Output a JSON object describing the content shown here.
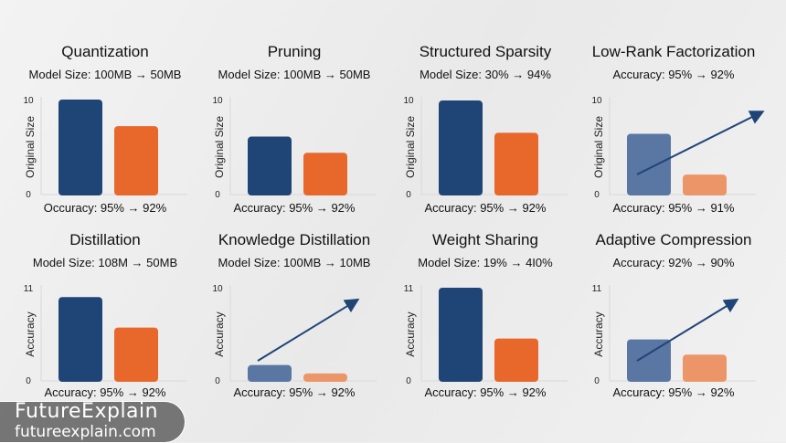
{
  "colors": {
    "blue": "#1f4577",
    "orange": "#e8682c",
    "blue_light": "#5a76a2",
    "orange_light": "#ec9569",
    "arrow": "#1f4577"
  },
  "watermark": {
    "brand": "FutureExplain",
    "url": "futureexplain.com"
  },
  "chart_data": [
    {
      "type": "bar",
      "title": "Quantization",
      "subtitle": "Model Size: 100MB → 50MB",
      "caption": "Occuracy: 95% → 92%",
      "ylabel": "Original Size",
      "ylim": [
        0,
        10
      ],
      "ticks": [
        "0",
        "10"
      ],
      "values": [
        10,
        7.2
      ],
      "trend_arrow": false,
      "faded": false
    },
    {
      "type": "bar",
      "title": "Pruning",
      "subtitle": "Model Size: 100MB → 50MB",
      "caption": "Accuracy: 95% → 92%",
      "ylabel": "Original Size",
      "ylim": [
        0,
        10
      ],
      "ticks": [
        "0",
        "10"
      ],
      "values": [
        6.1,
        4.4
      ],
      "trend_arrow": false,
      "faded": false
    },
    {
      "type": "bar",
      "title": "Structured Sparsity",
      "subtitle": "Model Size: 30% → 94%",
      "caption": "Accuracy: 95% → 92%",
      "ylabel": "Original Size",
      "ylim": [
        0,
        10
      ],
      "ticks": [
        "0",
        "10"
      ],
      "values": [
        9.9,
        6.5
      ],
      "trend_arrow": false,
      "faded": false
    },
    {
      "type": "bar",
      "title": "Low-Rank Factorization",
      "subtitle": "Accuracy: 95% → 92%",
      "caption": "Accuracy: 95% → 91%",
      "ylabel": "Original Size",
      "ylim": [
        0,
        10
      ],
      "ticks": [
        "0",
        "10"
      ],
      "values": [
        6.4,
        2.1
      ],
      "trend_arrow": true,
      "faded": true
    },
    {
      "type": "bar",
      "title": "Distillation",
      "subtitle": "Model Size: 108M → 50MB",
      "caption": "Accuracy: 95% → 92%",
      "ylabel": "Accuracy",
      "ylim": [
        0,
        11
      ],
      "ticks": [
        "0",
        "11"
      ],
      "values": [
        9.9,
        6.3
      ],
      "trend_arrow": false,
      "faded": false
    },
    {
      "type": "bar",
      "title": "Knowledge Distillation",
      "subtitle": "Model Size: 100MB → 10MB",
      "caption": "Accuracy: 95% → 92%",
      "ylabel": "Accuracy",
      "ylim": [
        0,
        10
      ],
      "ticks": [
        "0",
        "10"
      ],
      "values": [
        1.7,
        0.8
      ],
      "trend_arrow": true,
      "faded": true
    },
    {
      "type": "bar",
      "title": "Weight Sharing",
      "subtitle": "Model Size: 19% → 4I0%",
      "caption": "Accuracy: 95% → 92%",
      "ylabel": "Accuracy",
      "ylim": [
        0,
        11
      ],
      "ticks": [
        "0",
        "11"
      ],
      "values": [
        11,
        5.0
      ],
      "trend_arrow": false,
      "faded": false
    },
    {
      "type": "bar",
      "title": "Adaptive Compression",
      "subtitle": "Accuracy: 92% → 90%",
      "caption": "Accuracy: 95% → 92%",
      "ylabel": "Accuracy",
      "ylim": [
        0,
        11
      ],
      "ticks": [
        "0",
        "11"
      ],
      "values": [
        4.9,
        3.1
      ],
      "trend_arrow": true,
      "faded": true
    }
  ]
}
